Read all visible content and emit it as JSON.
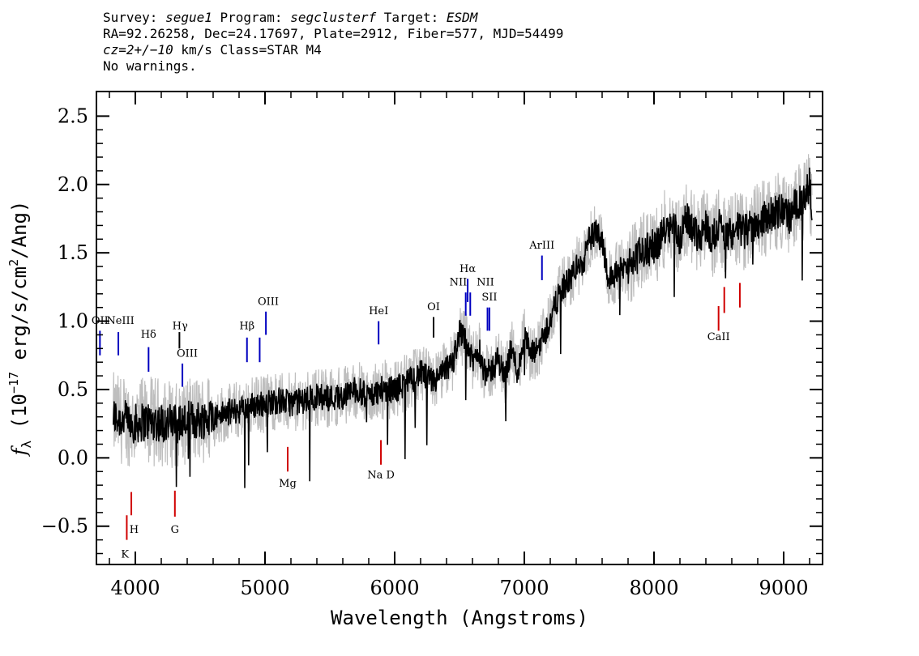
{
  "header": {
    "line1": {
      "survey_label": "Survey: ",
      "survey": "segue1",
      "program_label": " Program: ",
      "program": "segclusterf",
      "target_label": " Target: ",
      "target": "ESDM"
    },
    "line2": "RA=92.26258, Dec=24.17697, Plate=2912, Fiber=577, MJD=54499",
    "line3": {
      "cz": "cz=2+/−10",
      "rest": " km/s Class=STAR M4"
    },
    "line4": "No warnings."
  },
  "chart_data": {
    "type": "line",
    "xlabel": "Wavelength (Angstroms)",
    "ylabel": "f_λ (10^-17 erg/s/cm^2/Ang)",
    "ylabel_parts": {
      "f": "f",
      "sub": "λ",
      "a": " (10",
      "exp1": "−17",
      "b": " erg/s/cm",
      "exp2": "2",
      "c": "/Ang)"
    },
    "xlim": [
      3700,
      9300
    ],
    "ylim": [
      -0.78,
      2.68
    ],
    "xticks": [
      4000,
      5000,
      6000,
      7000,
      8000,
      9000
    ],
    "yticks": [
      -0.5,
      0.0,
      0.5,
      1.0,
      1.5,
      2.0,
      2.5
    ],
    "ytick_labels": [
      "−0.5",
      "0.0",
      "0.5",
      "1.0",
      "1.5",
      "2.0",
      "2.5"
    ],
    "series": [
      {
        "role": "flux",
        "color": "#000000",
        "x": [
          3830,
          3900,
          4000,
          4100,
          4200,
          4300,
          4400,
          4500,
          4600,
          4700,
          4800,
          4900,
          5000,
          5100,
          5200,
          5300,
          5400,
          5500,
          5600,
          5700,
          5800,
          5900,
          6000,
          6100,
          6200,
          6300,
          6400,
          6450,
          6500,
          6550,
          6600,
          6650,
          6700,
          6750,
          6800,
          6850,
          6900,
          6950,
          7000,
          7050,
          7100,
          7150,
          7200,
          7250,
          7300,
          7350,
          7400,
          7450,
          7500,
          7550,
          7600,
          7650,
          7700,
          7750,
          7800,
          7850,
          7900,
          7950,
          8000,
          8050,
          8100,
          8150,
          8200,
          8250,
          8300,
          8350,
          8400,
          8450,
          8500,
          8550,
          8600,
          8650,
          8700,
          8750,
          8800,
          8850,
          8900,
          8950,
          9000,
          9050,
          9100,
          9150,
          9200,
          9220
        ],
        "y": [
          0.3,
          0.28,
          0.25,
          0.27,
          0.26,
          0.25,
          0.27,
          0.28,
          0.3,
          0.33,
          0.35,
          0.38,
          0.4,
          0.42,
          0.4,
          0.42,
          0.45,
          0.44,
          0.45,
          0.5,
          0.45,
          0.5,
          0.5,
          0.55,
          0.62,
          0.55,
          0.65,
          0.7,
          0.92,
          0.85,
          0.7,
          0.8,
          0.6,
          0.65,
          0.72,
          0.6,
          0.8,
          0.62,
          0.9,
          0.75,
          0.8,
          0.9,
          1.0,
          1.15,
          1.25,
          1.3,
          1.4,
          1.4,
          1.6,
          1.65,
          1.6,
          1.3,
          1.35,
          1.38,
          1.4,
          1.45,
          1.5,
          1.52,
          1.55,
          1.6,
          1.72,
          1.7,
          1.6,
          1.75,
          1.68,
          1.62,
          1.7,
          1.6,
          1.72,
          1.6,
          1.65,
          1.68,
          1.65,
          1.7,
          1.72,
          1.75,
          1.78,
          1.8,
          1.82,
          1.75,
          1.88,
          1.85,
          2.0,
          1.75
        ],
        "noise": 0.1
      },
      {
        "role": "error",
        "color": "#bebebe",
        "noise": 0.22
      }
    ],
    "emission_lines": [
      {
        "label": "OII",
        "x": 3727,
        "y0": 0.75,
        "y1": 0.93,
        "lx": 3727,
        "ly": 0.98,
        "color": "#0000c0"
      },
      {
        "label": "NeIII",
        "x": 3869,
        "y0": 0.75,
        "y1": 0.92,
        "lx": 3885,
        "ly": 0.98,
        "color": "#0000c0"
      },
      {
        "label": "Hδ",
        "x": 4102,
        "y0": 0.63,
        "y1": 0.81,
        "lx": 4102,
        "ly": 0.88,
        "color": "#0000c0"
      },
      {
        "label": "Hγ",
        "x": 4340,
        "y0": 0.8,
        "y1": 0.92,
        "lx": 4345,
        "ly": 0.94,
        "color": "#000000"
      },
      {
        "label": "OIII",
        "x": 4363,
        "y0": 0.52,
        "y1": 0.69,
        "lx": 4400,
        "ly": 0.74,
        "color": "#0000c0"
      },
      {
        "label": "Hβ",
        "x": 4861,
        "y0": 0.7,
        "y1": 0.88,
        "lx": 4861,
        "ly": 0.94,
        "color": "#0000c0"
      },
      {
        "label": "",
        "x": 4959,
        "y0": 0.7,
        "y1": 0.88,
        "lx": 4959,
        "ly": 0,
        "color": "#0000c0"
      },
      {
        "label": "OIII",
        "x": 5007,
        "y0": 0.9,
        "y1": 1.07,
        "lx": 5025,
        "ly": 1.12,
        "color": "#0000c0"
      },
      {
        "label": "HeI",
        "x": 5876,
        "y0": 0.83,
        "y1": 1.0,
        "lx": 5876,
        "ly": 1.05,
        "color": "#0000c0"
      },
      {
        "label": "OI",
        "x": 6300,
        "y0": 0.88,
        "y1": 1.03,
        "lx": 6300,
        "ly": 1.08,
        "color": "#000000"
      },
      {
        "label": "NII",
        "x": 6548,
        "y0": 1.04,
        "y1": 1.21,
        "lx": 6490,
        "ly": 1.26,
        "color": "#0000c0"
      },
      {
        "label": "Hα",
        "x": 6563,
        "y0": 1.14,
        "y1": 1.31,
        "lx": 6563,
        "ly": 1.36,
        "color": "#0000c0"
      },
      {
        "label": "",
        "x": 6583,
        "y0": 1.04,
        "y1": 1.21,
        "lx": 6583,
        "ly": 0,
        "color": "#0000c0"
      },
      {
        "label": "NII",
        "x": 6716,
        "y0": 0.93,
        "y1": 1.1,
        "lx": 6700,
        "ly": 1.26,
        "color": "#0000c0"
      },
      {
        "label": "SII",
        "x": 6731,
        "y0": 0.93,
        "y1": 1.1,
        "lx": 6731,
        "ly": 1.15,
        "color": "#0000c0"
      },
      {
        "label": "ArIII",
        "x": 7136,
        "y0": 1.3,
        "y1": 1.48,
        "lx": 7136,
        "ly": 1.53,
        "color": "#0000c0"
      }
    ],
    "absorption_lines": [
      {
        "label": "K",
        "x": 3934,
        "y0": -0.6,
        "y1": -0.42,
        "lx": 3920,
        "ly": -0.73,
        "color": "#d00000"
      },
      {
        "label": "H",
        "x": 3969,
        "y0": -0.42,
        "y1": -0.25,
        "lx": 3990,
        "ly": -0.55,
        "color": "#d00000"
      },
      {
        "label": "G",
        "x": 4305,
        "y0": -0.43,
        "y1": -0.24,
        "lx": 4305,
        "ly": -0.55,
        "color": "#d00000"
      },
      {
        "label": "Mg",
        "x": 5175,
        "y0": -0.1,
        "y1": 0.08,
        "lx": 5175,
        "ly": -0.21,
        "color": "#d00000"
      },
      {
        "label": "Na D",
        "x": 5894,
        "y0": -0.05,
        "y1": 0.13,
        "lx": 5894,
        "ly": -0.15,
        "color": "#d00000"
      },
      {
        "label": "CaII",
        "x": 8498,
        "y0": 0.93,
        "y1": 1.11,
        "lx": 8498,
        "ly": 0.86,
        "color": "#d00000"
      },
      {
        "label": "",
        "x": 8542,
        "y0": 1.06,
        "y1": 1.25,
        "lx": 8542,
        "ly": 0,
        "color": "#d00000"
      },
      {
        "label": "",
        "x": 8662,
        "y0": 1.1,
        "y1": 1.28,
        "lx": 8662,
        "ly": 0,
        "color": "#d00000"
      }
    ]
  }
}
